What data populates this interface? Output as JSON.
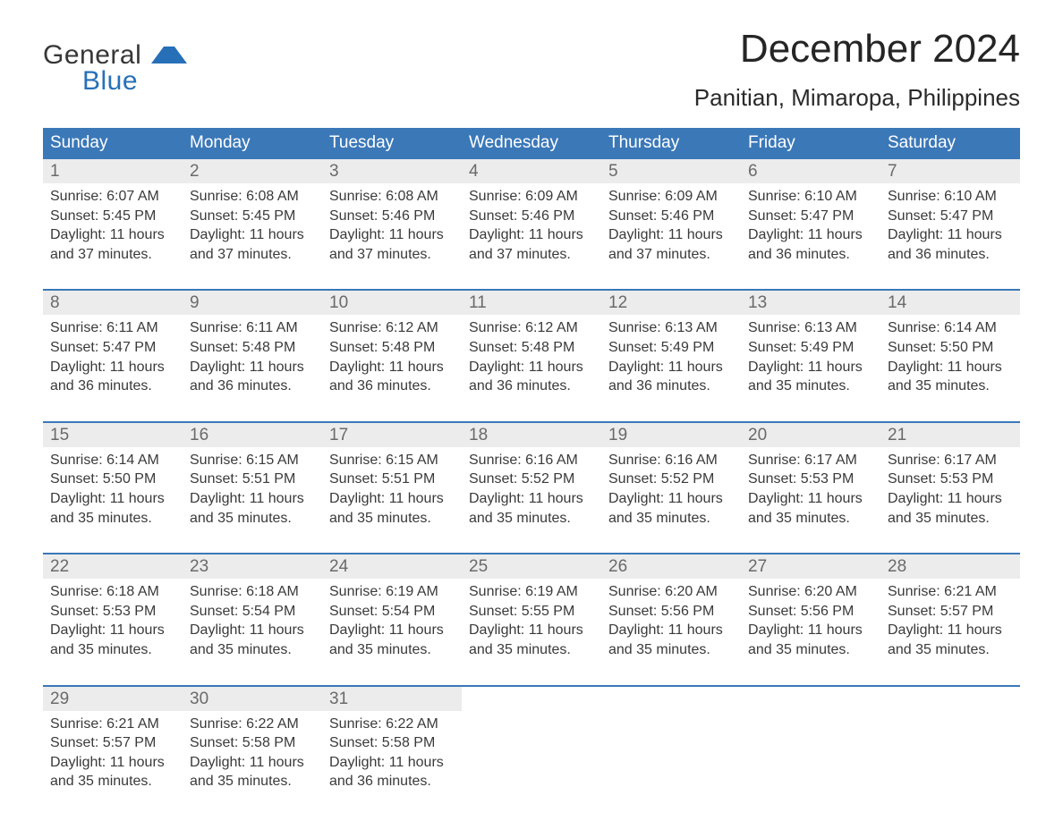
{
  "brand": {
    "line1": "General",
    "line2": "Blue"
  },
  "title": "December 2024",
  "location": "Panitian, Mimaropa, Philippines",
  "colors": {
    "header_bg": "#3b78b8",
    "header_text": "#ffffff",
    "daynum_bg": "#ececec",
    "daynum_text": "#6a6a6a",
    "body_text": "#3a3a3a",
    "accent_blue": "#2770b7",
    "page_bg": "#ffffff"
  },
  "typography": {
    "month_title_size": 44,
    "location_size": 26,
    "weekday_header_size": 19,
    "daynum_size": 19,
    "cell_text_size": 16
  },
  "weekdays": [
    "Sunday",
    "Monday",
    "Tuesday",
    "Wednesday",
    "Thursday",
    "Friday",
    "Saturday"
  ],
  "weeks": [
    [
      {
        "day": "1",
        "sunrise": "6:07 AM",
        "sunset": "5:45 PM",
        "daylight": "11 hours and 37 minutes."
      },
      {
        "day": "2",
        "sunrise": "6:08 AM",
        "sunset": "5:45 PM",
        "daylight": "11 hours and 37 minutes."
      },
      {
        "day": "3",
        "sunrise": "6:08 AM",
        "sunset": "5:46 PM",
        "daylight": "11 hours and 37 minutes."
      },
      {
        "day": "4",
        "sunrise": "6:09 AM",
        "sunset": "5:46 PM",
        "daylight": "11 hours and 37 minutes."
      },
      {
        "day": "5",
        "sunrise": "6:09 AM",
        "sunset": "5:46 PM",
        "daylight": "11 hours and 37 minutes."
      },
      {
        "day": "6",
        "sunrise": "6:10 AM",
        "sunset": "5:47 PM",
        "daylight": "11 hours and 36 minutes."
      },
      {
        "day": "7",
        "sunrise": "6:10 AM",
        "sunset": "5:47 PM",
        "daylight": "11 hours and 36 minutes."
      }
    ],
    [
      {
        "day": "8",
        "sunrise": "6:11 AM",
        "sunset": "5:47 PM",
        "daylight": "11 hours and 36 minutes."
      },
      {
        "day": "9",
        "sunrise": "6:11 AM",
        "sunset": "5:48 PM",
        "daylight": "11 hours and 36 minutes."
      },
      {
        "day": "10",
        "sunrise": "6:12 AM",
        "sunset": "5:48 PM",
        "daylight": "11 hours and 36 minutes."
      },
      {
        "day": "11",
        "sunrise": "6:12 AM",
        "sunset": "5:48 PM",
        "daylight": "11 hours and 36 minutes."
      },
      {
        "day": "12",
        "sunrise": "6:13 AM",
        "sunset": "5:49 PM",
        "daylight": "11 hours and 36 minutes."
      },
      {
        "day": "13",
        "sunrise": "6:13 AM",
        "sunset": "5:49 PM",
        "daylight": "11 hours and 35 minutes."
      },
      {
        "day": "14",
        "sunrise": "6:14 AM",
        "sunset": "5:50 PM",
        "daylight": "11 hours and 35 minutes."
      }
    ],
    [
      {
        "day": "15",
        "sunrise": "6:14 AM",
        "sunset": "5:50 PM",
        "daylight": "11 hours and 35 minutes."
      },
      {
        "day": "16",
        "sunrise": "6:15 AM",
        "sunset": "5:51 PM",
        "daylight": "11 hours and 35 minutes."
      },
      {
        "day": "17",
        "sunrise": "6:15 AM",
        "sunset": "5:51 PM",
        "daylight": "11 hours and 35 minutes."
      },
      {
        "day": "18",
        "sunrise": "6:16 AM",
        "sunset": "5:52 PM",
        "daylight": "11 hours and 35 minutes."
      },
      {
        "day": "19",
        "sunrise": "6:16 AM",
        "sunset": "5:52 PM",
        "daylight": "11 hours and 35 minutes."
      },
      {
        "day": "20",
        "sunrise": "6:17 AM",
        "sunset": "5:53 PM",
        "daylight": "11 hours and 35 minutes."
      },
      {
        "day": "21",
        "sunrise": "6:17 AM",
        "sunset": "5:53 PM",
        "daylight": "11 hours and 35 minutes."
      }
    ],
    [
      {
        "day": "22",
        "sunrise": "6:18 AM",
        "sunset": "5:53 PM",
        "daylight": "11 hours and 35 minutes."
      },
      {
        "day": "23",
        "sunrise": "6:18 AM",
        "sunset": "5:54 PM",
        "daylight": "11 hours and 35 minutes."
      },
      {
        "day": "24",
        "sunrise": "6:19 AM",
        "sunset": "5:54 PM",
        "daylight": "11 hours and 35 minutes."
      },
      {
        "day": "25",
        "sunrise": "6:19 AM",
        "sunset": "5:55 PM",
        "daylight": "11 hours and 35 minutes."
      },
      {
        "day": "26",
        "sunrise": "6:20 AM",
        "sunset": "5:56 PM",
        "daylight": "11 hours and 35 minutes."
      },
      {
        "day": "27",
        "sunrise": "6:20 AM",
        "sunset": "5:56 PM",
        "daylight": "11 hours and 35 minutes."
      },
      {
        "day": "28",
        "sunrise": "6:21 AM",
        "sunset": "5:57 PM",
        "daylight": "11 hours and 35 minutes."
      }
    ],
    [
      {
        "day": "29",
        "sunrise": "6:21 AM",
        "sunset": "5:57 PM",
        "daylight": "11 hours and 35 minutes."
      },
      {
        "day": "30",
        "sunrise": "6:22 AM",
        "sunset": "5:58 PM",
        "daylight": "11 hours and 35 minutes."
      },
      {
        "day": "31",
        "sunrise": "6:22 AM",
        "sunset": "5:58 PM",
        "daylight": "11 hours and 36 minutes."
      },
      null,
      null,
      null,
      null
    ]
  ],
  "labels": {
    "sunrise": "Sunrise:",
    "sunset": "Sunset:",
    "daylight": "Daylight:"
  }
}
